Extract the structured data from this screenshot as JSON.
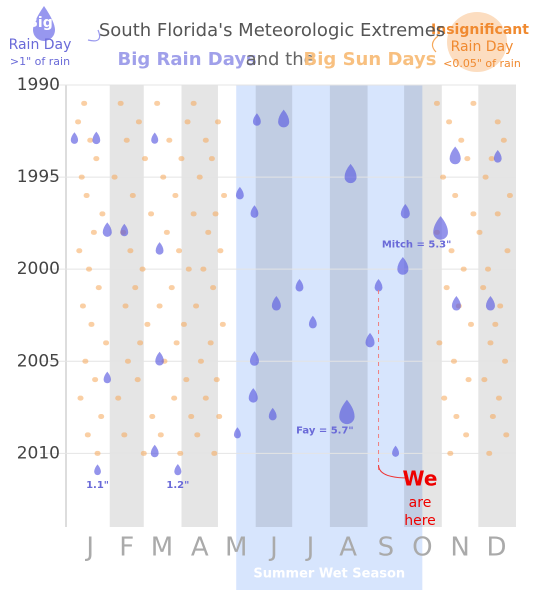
{
  "chart_data": {
    "type": "scatter",
    "title": "South Florida's Meteorologic Extremes",
    "subtitle_parts": [
      "Big Rain Days",
      "and the",
      "Big Sun Days"
    ],
    "legend_rain": [
      "Big",
      "Rain Day",
      ">1\" of rain"
    ],
    "legend_sun": [
      "Insignificant",
      "Rain Day",
      "<0.05\" of rain"
    ],
    "season_label": "Summer Wet Season",
    "here_label": [
      "We",
      "are",
      "here"
    ],
    "xlim": [
      0,
      365
    ],
    "ylim": [
      1990,
      2014
    ],
    "xticks": [
      {
        "value": 15,
        "label": "J"
      },
      {
        "value": 45,
        "label": "F"
      },
      {
        "value": 74,
        "label": "M"
      },
      {
        "value": 105,
        "label": "A"
      },
      {
        "value": 135,
        "label": "M"
      },
      {
        "value": 166,
        "label": "J"
      },
      {
        "value": 196,
        "label": "J"
      },
      {
        "value": 227,
        "label": "A"
      },
      {
        "value": 258,
        "label": "S"
      },
      {
        "value": 288,
        "label": "O"
      },
      {
        "value": 319,
        "label": "N"
      },
      {
        "value": 349,
        "label": "D"
      }
    ],
    "yticks": [
      1990,
      1995,
      2000,
      2005,
      2010
    ],
    "rain_color": "#5a5ae0",
    "sun_color": "#f6a85a",
    "rain_days": {
      "x": [
        174,
        152,
        2,
        20,
        68,
        229,
        315,
        350,
        303,
        274,
        138,
        150,
        29,
        43,
        72,
        272,
        316,
        344,
        168,
        187,
        245,
        150,
        72,
        29,
        149,
        226,
        165,
        136,
        68,
        21,
        87,
        266,
        252,
        198
      ],
      "y": [
        1992,
        1992,
        1993,
        1993,
        1993,
        1995,
        1994,
        1994,
        1998,
        1997,
        1996,
        1997,
        1998,
        1998,
        1999,
        2000,
        2002,
        2002,
        2002,
        2001,
        2004,
        2005,
        2005,
        2006,
        2007,
        2008,
        2008,
        2009,
        2010,
        2011,
        2011,
        2010,
        2001,
        2003
      ],
      "size": [
        3,
        1.5,
        1.3,
        1.5,
        1.2,
        3.5,
        3,
        1.5,
        5.3,
        2,
        1.5,
        1.5,
        2,
        1.5,
        1.5,
        3,
        2,
        2,
        2,
        1.5,
        2,
        2,
        1.8,
        1.3,
        2,
        5.7,
        1.5,
        1.2,
        1.5,
        1.1,
        1.2,
        1.2,
        1.5,
        1.5
      ]
    },
    "annotations": [
      {
        "text": "Mitch = 5.3\"",
        "point": 8
      },
      {
        "text": "Fay = 5.7\"",
        "point": 25
      },
      {
        "text": "1.1\"",
        "point": 29
      },
      {
        "text": "1.2\"",
        "point": 30
      }
    ],
    "sun_days": {
      "x": [
        10,
        40,
        70,
        100,
        300,
        330,
        5,
        55,
        95,
        120,
        310,
        350,
        15,
        45,
        80,
        110,
        320,
        355,
        20,
        60,
        90,
        115,
        325,
        345,
        8,
        35,
        75,
        105,
        305,
        340,
        12,
        50,
        85,
        125,
        315,
        360,
        25,
        65,
        100,
        118,
        330,
        350,
        18,
        42,
        78,
        112,
        300,
        335,
        6,
        48,
        88,
        122,
        312,
        358,
        14,
        58,
        96,
        108,
        322,
        342,
        22,
        52,
        82,
        116,
        308,
        338,
        9,
        44,
        72,
        102,
        318,
        352,
        16,
        62,
        92,
        124,
        328,
        348,
        28,
        56,
        86,
        114,
        302,
        344,
        11,
        46,
        76,
        106,
        314,
        356,
        19,
        54,
        94,
        119,
        326,
        339,
        7,
        38,
        84,
        110,
        306,
        351,
        24,
        66,
        98,
        121,
        316,
        346,
        13,
        43,
        73,
        103,
        324,
        357,
        21,
        59,
        89,
        117,
        311,
        343
      ],
      "y": [
        1991,
        1991,
        1991,
        1991,
        1991,
        1991,
        1992,
        1992,
        1992,
        1992,
        1992,
        1992,
        1993,
        1993,
        1993,
        1993,
        1993,
        1993,
        1994,
        1994,
        1994,
        1994,
        1994,
        1994,
        1995,
        1995,
        1995,
        1995,
        1995,
        1995,
        1996,
        1996,
        1996,
        1996,
        1996,
        1996,
        1997,
        1997,
        1997,
        1997,
        1997,
        1997,
        1998,
        1998,
        1998,
        1998,
        1998,
        1998,
        1999,
        1999,
        1999,
        1999,
        1999,
        1999,
        2000,
        2000,
        2000,
        2000,
        2000,
        2000,
        2001,
        2001,
        2001,
        2001,
        2001,
        2001,
        2002,
        2002,
        2002,
        2002,
        2002,
        2002,
        2003,
        2003,
        2003,
        2003,
        2003,
        2003,
        2004,
        2004,
        2004,
        2004,
        2004,
        2004,
        2005,
        2005,
        2005,
        2005,
        2005,
        2005,
        2006,
        2006,
        2006,
        2006,
        2006,
        2006,
        2007,
        2007,
        2007,
        2007,
        2007,
        2007,
        2008,
        2008,
        2008,
        2008,
        2008,
        2008,
        2009,
        2009,
        2009,
        2009,
        2009,
        2009,
        2010,
        2010,
        2010,
        2010,
        2010,
        2010
      ]
    }
  }
}
